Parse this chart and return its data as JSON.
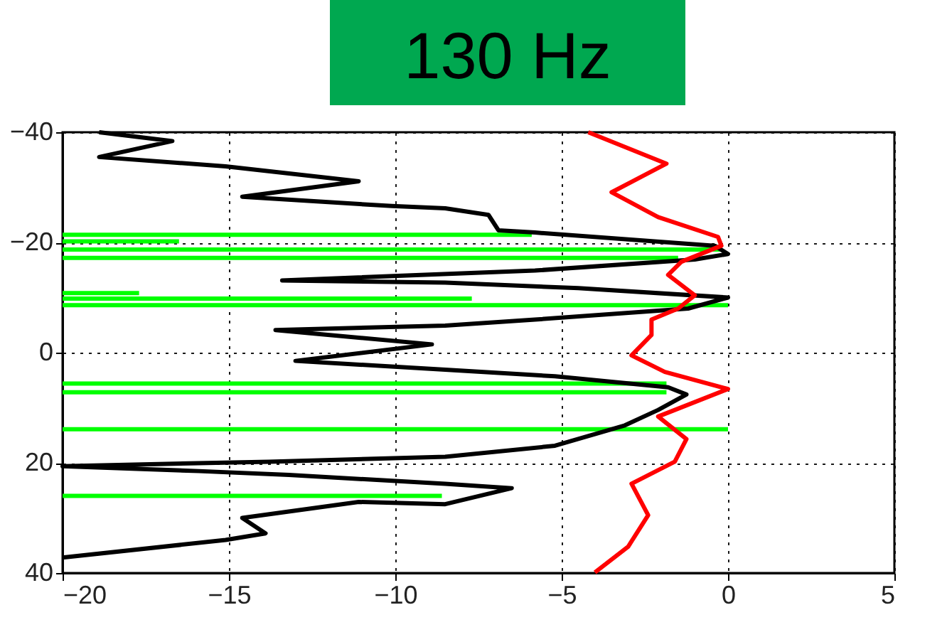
{
  "chart_data": {
    "type": "line",
    "title": "130 Hz",
    "xlim": [
      -20,
      5
    ],
    "xticks": [
      -20,
      -15,
      -10,
      -5,
      0,
      5
    ],
    "ylim": [
      40,
      -40
    ],
    "yticks": [
      -40,
      -20,
      0,
      20,
      40
    ],
    "grid": true,
    "legend": false,
    "marker": "none",
    "line_style": "solid",
    "series": [
      {
        "color": "#00ff00",
        "x": [
          -20,
          -5.9
        ],
        "values": [
          -21.4,
          -21.4
        ]
      },
      {
        "color": "#00ff00",
        "x": [
          -20,
          -16.5
        ],
        "values": [
          -20.2,
          -20.2
        ]
      },
      {
        "color": "#00ff00",
        "x": [
          -20,
          -0.2
        ],
        "values": [
          -18.7,
          -18.7
        ]
      },
      {
        "color": "#00ff00",
        "x": [
          -20,
          -1.5
        ],
        "values": [
          -17.2,
          -17.2
        ]
      },
      {
        "color": "#00ff00",
        "x": [
          -20,
          -17.7
        ],
        "values": [
          -10.8,
          -10.8
        ]
      },
      {
        "color": "#00ff00",
        "x": [
          -20,
          -7.7
        ],
        "values": [
          -9.8,
          -9.8
        ]
      },
      {
        "color": "#00ff00",
        "x": [
          -20,
          0
        ],
        "values": [
          -8.6,
          -8.6
        ]
      },
      {
        "color": "#00ff00",
        "x": [
          -20,
          -1.85
        ],
        "values": [
          5.6,
          5.6
        ]
      },
      {
        "color": "#00ff00",
        "x": [
          -20,
          -1.85
        ],
        "values": [
          7.2,
          7.2
        ]
      },
      {
        "color": "#00ff00",
        "x": [
          -20,
          0
        ],
        "values": [
          13.9,
          13.9
        ]
      },
      {
        "color": "#00ff00",
        "x": [
          -20,
          -8.6
        ],
        "values": [
          26,
          26
        ]
      },
      {
        "color": "#000000",
        "x": [
          -18.9,
          -16.7,
          -18.9,
          -15.1,
          -11.1,
          -14.6,
          -10.1,
          -8.5,
          -7.2,
          -6.9,
          -5.8,
          -0.4,
          0,
          -1,
          -5.8,
          -13.4,
          -8.5,
          -4.5,
          0,
          -1.2,
          -5.8,
          -8.5,
          -13.6,
          -8.9,
          -13,
          -8.5,
          -5.2,
          -1.8,
          -1.25,
          -2.1,
          -3.1,
          -5.2,
          -8.5,
          -13.8,
          -20,
          -15.9,
          -13.2,
          -8.5,
          -6.5,
          -8.5,
          -11.1,
          -14.6,
          -13.9,
          -15.1,
          -20
        ],
        "values": [
          -40,
          -38.4,
          -35.5,
          -33.8,
          -31.1,
          -28.3,
          -26.6,
          -26.2,
          -25,
          -22.2,
          -21.8,
          -19.4,
          -17.9,
          -16.9,
          -14.9,
          -13.1,
          -12.7,
          -11.7,
          -10,
          -8,
          -6,
          -4.9,
          -4.1,
          -1.5,
          1.5,
          3.1,
          4.3,
          6.3,
          7.6,
          10.4,
          13.2,
          16.9,
          18.9,
          19.8,
          20.6,
          21.5,
          22.2,
          23.8,
          24.6,
          27.5,
          27.1,
          30,
          32.8,
          34,
          37.2
        ]
      },
      {
        "color": "#ff0000",
        "x": [
          -4.2,
          -1.85,
          -3.5,
          -2.1,
          -0.3,
          -0.2,
          -1.4,
          -1.8,
          -1,
          -1.5,
          -2.3,
          -2.3,
          -2.9,
          -1.9,
          0,
          -2.1,
          -1.25,
          -1.6,
          -2.9,
          -2.4,
          -3,
          -4
        ],
        "values": [
          -40,
          -34.3,
          -29.1,
          -24.6,
          -21,
          -19.4,
          -16.5,
          -14.1,
          -10.4,
          -8,
          -6,
          -3.2,
          0.5,
          3.5,
          6.6,
          11.6,
          15.7,
          19.8,
          23.8,
          29.5,
          35.2,
          39.9
        ]
      }
    ]
  }
}
